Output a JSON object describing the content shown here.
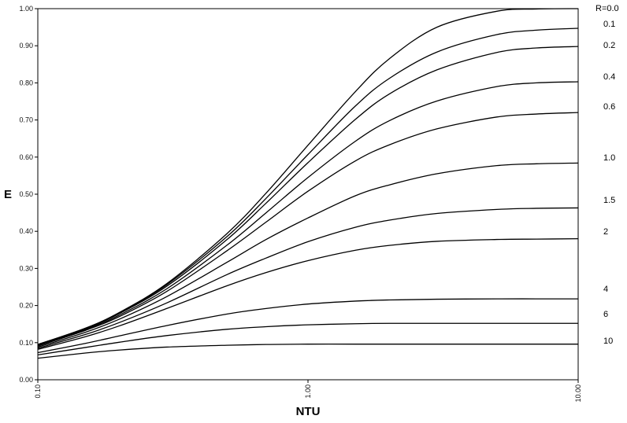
{
  "chart_data": {
    "type": "line",
    "title": "",
    "xlabel": "NTU",
    "ylabel": "E",
    "x_scale": "log",
    "xlim": [
      0.1,
      10
    ],
    "ylim": [
      0,
      1
    ],
    "grid": false,
    "y_ticks": [
      "0.00",
      "0.10",
      "0.20",
      "0.30",
      "0.40",
      "0.50",
      "0.60",
      "0.70",
      "0.80",
      "0.90",
      "1.00"
    ],
    "x_ticks": [
      "0.10",
      "1.00",
      "10.00"
    ],
    "x": [
      0.1,
      0.15,
      0.2,
      0.3,
      0.5,
      0.7,
      1.0,
      1.5,
      2.0,
      3.0,
      5.0,
      7.0,
      10.0
    ],
    "series": [
      {
        "name": "R=0.0",
        "values": [
          0.095,
          0.139,
          0.181,
          0.259,
          0.393,
          0.503,
          0.632,
          0.777,
          0.865,
          0.95,
          0.993,
          0.999,
          1.0
        ]
      },
      {
        "name": "0.1",
        "values": [
          0.095,
          0.138,
          0.18,
          0.256,
          0.385,
          0.489,
          0.607,
          0.738,
          0.812,
          0.883,
          0.93,
          0.942,
          0.947
        ]
      },
      {
        "name": "0.2",
        "values": [
          0.094,
          0.137,
          0.178,
          0.252,
          0.377,
          0.476,
          0.585,
          0.702,
          0.77,
          0.835,
          0.882,
          0.894,
          0.898
        ]
      },
      {
        "name": "0.4",
        "values": [
          0.093,
          0.135,
          0.174,
          0.245,
          0.362,
          0.45,
          0.545,
          0.643,
          0.698,
          0.751,
          0.79,
          0.8,
          0.803
        ]
      },
      {
        "name": "0.6",
        "values": [
          0.091,
          0.133,
          0.17,
          0.238,
          0.347,
          0.425,
          0.508,
          0.59,
          0.633,
          0.676,
          0.708,
          0.716,
          0.72
        ]
      },
      {
        "name": "1.0",
        "values": [
          0.088,
          0.128,
          0.163,
          0.224,
          0.316,
          0.378,
          0.436,
          0.496,
          0.525,
          0.555,
          0.577,
          0.582,
          0.584
        ]
      },
      {
        "name": "1.5",
        "values": [
          0.085,
          0.122,
          0.154,
          0.207,
          0.283,
          0.328,
          0.372,
          0.411,
          0.43,
          0.448,
          0.459,
          0.462,
          0.463
        ]
      },
      {
        "name": "2",
        "values": [
          0.082,
          0.116,
          0.145,
          0.192,
          0.253,
          0.289,
          0.321,
          0.349,
          0.362,
          0.373,
          0.378,
          0.379,
          0.38
        ]
      },
      {
        "name": "4",
        "values": [
          0.073,
          0.098,
          0.118,
          0.146,
          0.177,
          0.192,
          0.204,
          0.212,
          0.215,
          0.217,
          0.218,
          0.218,
          0.218
        ]
      },
      {
        "name": "6",
        "values": [
          0.067,
          0.087,
          0.101,
          0.119,
          0.136,
          0.143,
          0.148,
          0.151,
          0.152,
          0.152,
          0.152,
          0.152,
          0.152
        ]
      },
      {
        "name": "10",
        "values": [
          0.058,
          0.072,
          0.08,
          0.088,
          0.093,
          0.095,
          0.096,
          0.096,
          0.096,
          0.096,
          0.096,
          0.096,
          0.096
        ]
      }
    ]
  }
}
